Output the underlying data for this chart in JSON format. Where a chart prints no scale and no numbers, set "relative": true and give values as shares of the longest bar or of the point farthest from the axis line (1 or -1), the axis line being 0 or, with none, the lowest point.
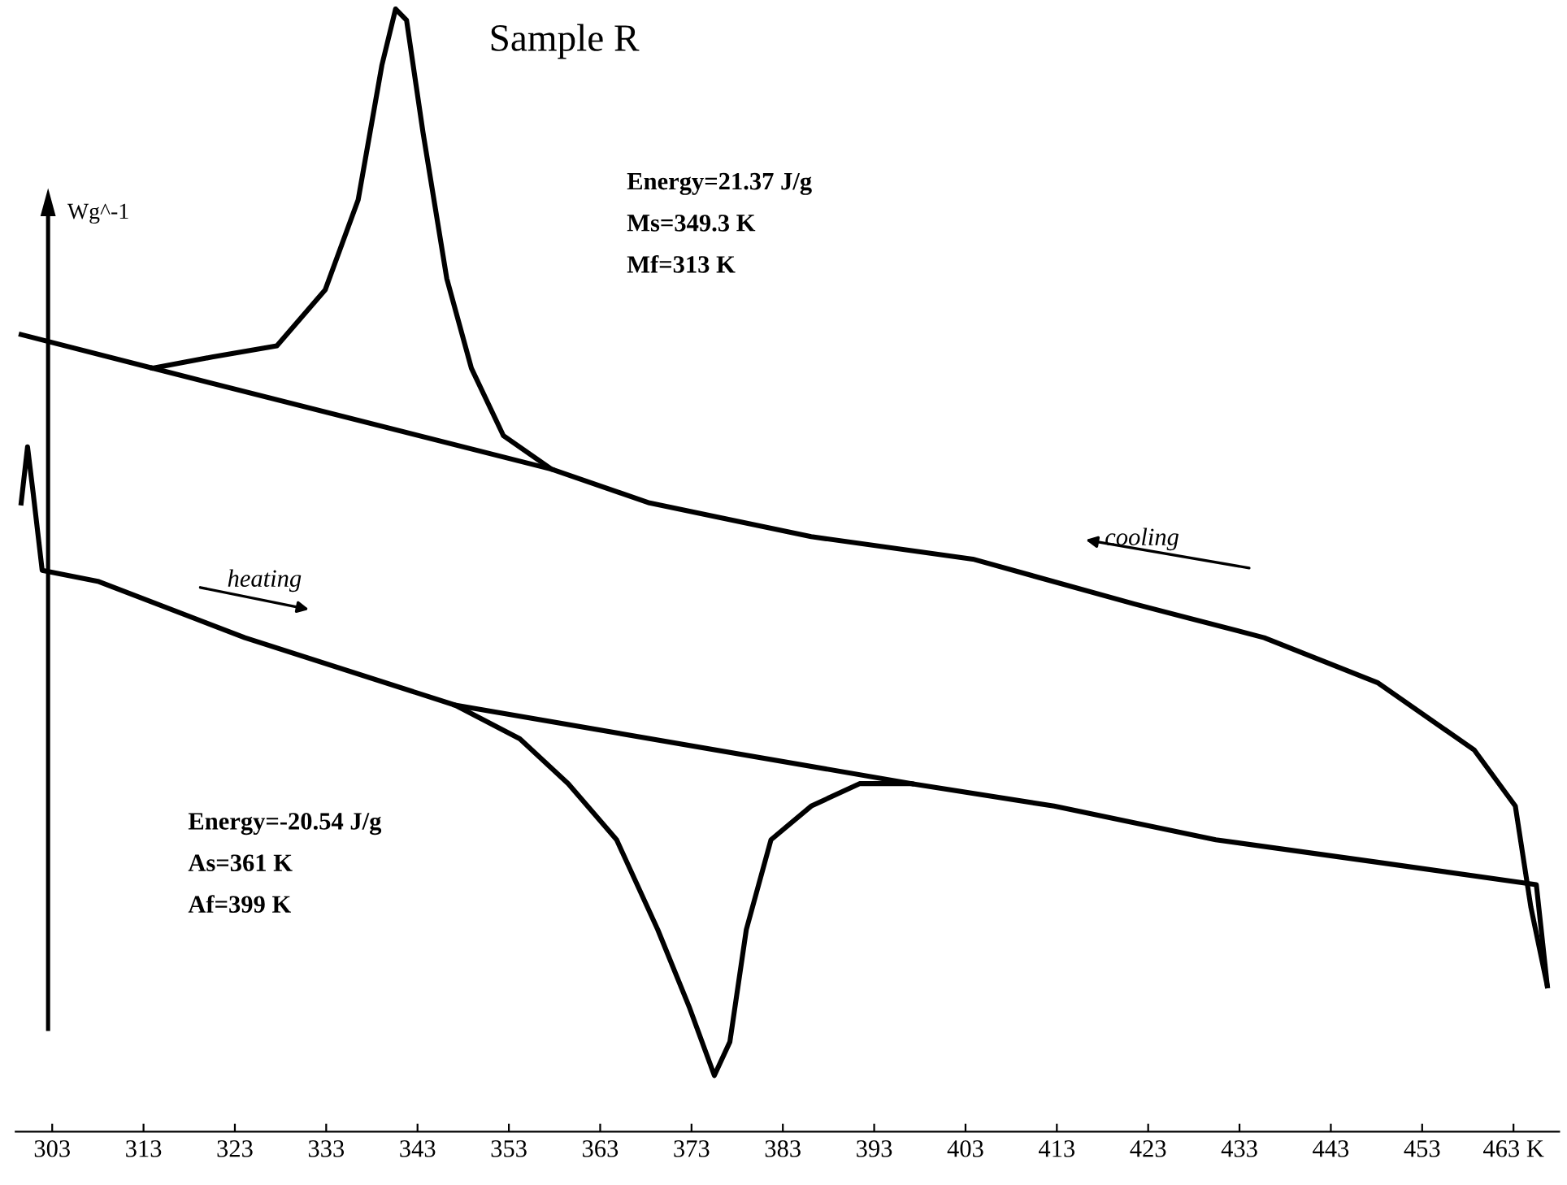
{
  "chart_data": {
    "type": "line",
    "title": "Sample R",
    "ylabel": "Wg^-1",
    "relative": true,
    "series": [
      {
        "color": "#000000",
        "x": [
          299.6,
          314.0,
          320.5,
          327.6,
          332.9,
          336.5,
          339.1,
          340.6,
          341.8,
          343.6,
          346.2,
          348.9,
          352.4,
          357.7,
          368.4,
          386.1,
          403.8,
          421.5,
          435.7,
          448.1,
          458.7,
          463.2,
          464.9,
          466.7
        ],
        "values": [
          0.71,
          0.68,
          0.69,
          0.7,
          0.75,
          0.83,
          0.95,
          1.0,
          0.99,
          0.89,
          0.76,
          0.68,
          0.62,
          0.59,
          0.56,
          0.53,
          0.51,
          0.47,
          0.44,
          0.4,
          0.34,
          0.29,
          0.2,
          0.13
        ]
      },
      {
        "color": "#000000",
        "x": [
          299.6,
          300.3,
          300.9,
          301.9,
          308.1,
          324.1,
          347.1,
          354.2,
          359.5,
          364.8,
          369.3,
          372.8,
          375.5,
          377.2,
          379.0,
          381.7,
          386.1,
          391.4,
          397.1,
          412.7,
          430.4,
          448.1,
          465.5,
          466.7
        ],
        "values": [
          0.56,
          0.61,
          0.57,
          0.5,
          0.49,
          0.44,
          0.38,
          0.35,
          0.31,
          0.26,
          0.18,
          0.11,
          0.05,
          0.08,
          0.18,
          0.26,
          0.29,
          0.31,
          0.31,
          0.29,
          0.26,
          0.24,
          0.22,
          0.13
        ]
      },
      {
        "color": "#000000",
        "x": [
          314.0,
          357.7
        ],
        "values": [
          0.68,
          0.59
        ]
      },
      {
        "color": "#000000",
        "x": [
          347.1,
          397.1
        ],
        "values": [
          0.38,
          0.31
        ]
      }
    ],
    "xlim": [
      299,
      468
    ],
    "xticks": [
      303,
      313,
      323,
      333,
      343,
      353,
      363,
      373,
      383,
      393,
      403,
      413,
      423,
      433,
      443,
      453,
      {
        "value": 463,
        "label": "463 K"
      }
    ],
    "tick_labels": "x",
    "grid": false,
    "annotations": [
      "Energy=21.37 J/g",
      "Ms=349.3 K",
      "Mf=313 K",
      "Energy=-20.54 J/g",
      "As=361 K",
      "Af=399 K",
      "heating",
      "cooling"
    ]
  }
}
